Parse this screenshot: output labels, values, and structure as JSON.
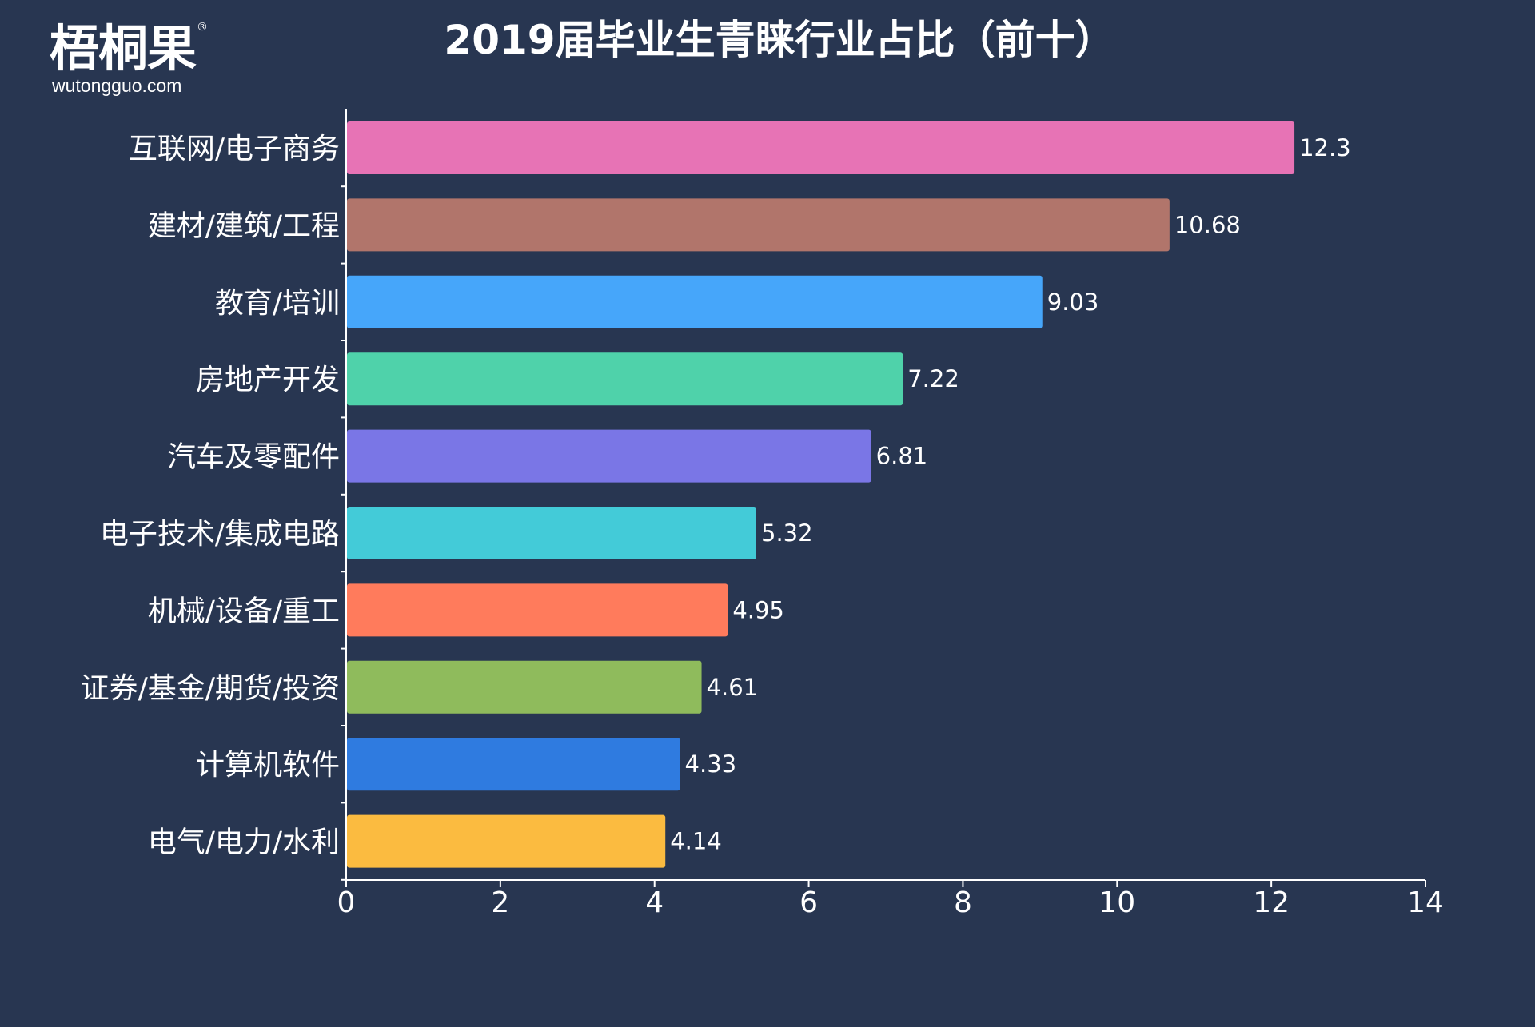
{
  "logo": {
    "main": "梧桐果",
    "registered": "®",
    "sub": "wutongguo.com"
  },
  "chart_data": {
    "type": "bar",
    "orientation": "horizontal",
    "title": "2019届毕业生青睐行业占比（前十）",
    "xlabel": "",
    "ylabel": "",
    "xlim": [
      0,
      14
    ],
    "x_ticks": [
      0,
      2,
      4,
      6,
      8,
      10,
      12,
      14
    ],
    "grid": false,
    "legend": "none",
    "categories": [
      "互联网/电子商务",
      "建材/建筑/工程",
      "教育/培训",
      "房地产开发",
      "汽车及零配件",
      "电子技术/集成电路",
      "机械/设备/重工",
      "证券/基金/期货/投资",
      "计算机软件",
      "电气/电力/水利"
    ],
    "values": [
      12.3,
      10.68,
      9.03,
      7.22,
      6.81,
      5.32,
      4.95,
      4.61,
      4.33,
      4.14
    ],
    "value_labels": [
      "12.3",
      "10.68",
      "9.03",
      "7.22",
      "6.81",
      "5.32",
      "4.95",
      "4.61",
      "4.33",
      "4.14"
    ],
    "colors": [
      "#e773b5",
      "#b1756b",
      "#46a6fa",
      "#4fd2aa",
      "#7a76e6",
      "#43cbd8",
      "#ff7b5c",
      "#8fbb5c",
      "#2f7be0",
      "#fbbb40"
    ]
  },
  "colors": {
    "background": "#283651",
    "axis": "#ffffff",
    "text": "#ffffff"
  }
}
